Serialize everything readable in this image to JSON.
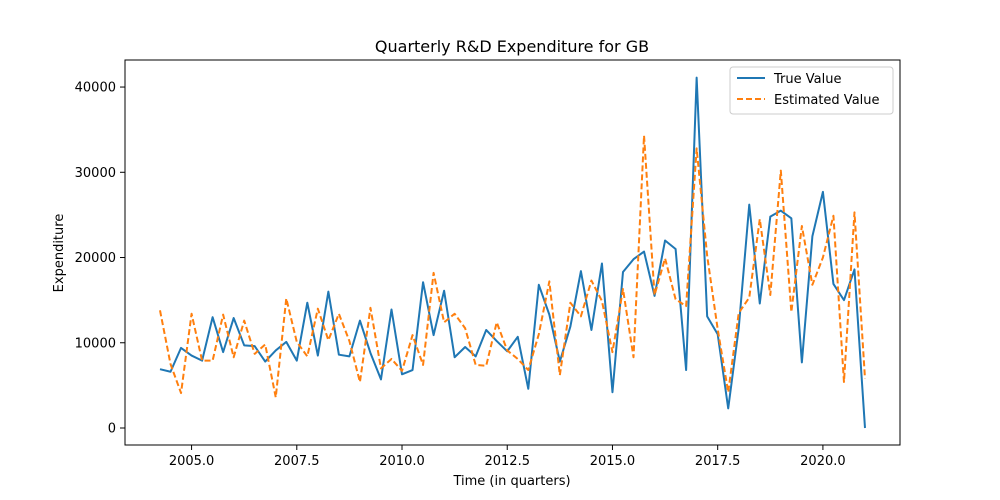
{
  "chart_data": {
    "type": "line",
    "title": "Quarterly R&D Expenditure for GB",
    "xlabel": "Time (in quarters)",
    "ylabel": "Expenditure",
    "xlim": [
      2004.25,
      2021.0
    ],
    "ylim": [
      0,
      42000
    ],
    "x_tick_values": [
      2005.0,
      2007.5,
      2010.0,
      2012.5,
      2015.0,
      2017.5,
      2020.0
    ],
    "x_tick_labels": [
      "2005.0",
      "2007.5",
      "2010.0",
      "2012.5",
      "2015.0",
      "2017.5",
      "2020.0"
    ],
    "y_tick_values": [
      0,
      10000,
      20000,
      30000,
      40000
    ],
    "y_tick_labels": [
      "0",
      "10000",
      "20000",
      "30000",
      "40000"
    ],
    "legend_position": "top-right",
    "grid": false,
    "x_start": 2004.25,
    "x_step": 0.25,
    "series": [
      {
        "name": "True Value",
        "color": "#1f77b4",
        "style": "solid",
        "values": [
          6900,
          6600,
          9400,
          8500,
          7900,
          13000,
          8900,
          12900,
          9700,
          9600,
          7800,
          9100,
          10100,
          7900,
          14700,
          8500,
          16000,
          8600,
          8400,
          12600,
          8800,
          5700,
          13900,
          6300,
          6800,
          17100,
          10900,
          16100,
          8300,
          9500,
          8400,
          11500,
          10200,
          9000,
          10700,
          4600,
          16800,
          13300,
          7800,
          11900,
          18400,
          11500,
          19300,
          4200,
          18300,
          19800,
          20700,
          15500,
          22000,
          21000,
          6800,
          41100,
          13100,
          11000,
          2300,
          11700,
          26200,
          14600,
          24800,
          25500,
          24600,
          7700,
          22500,
          27700,
          16900,
          15000,
          18600,
          0
        ]
      },
      {
        "name": "Estimated Value",
        "color": "#ff7f0e",
        "style": "dashed",
        "values": [
          13800,
          7500,
          4100,
          13400,
          7900,
          7900,
          13300,
          8300,
          12600,
          8700,
          9800,
          3600,
          15200,
          10100,
          8400,
          14000,
          10300,
          13400,
          10200,
          5400,
          14100,
          7000,
          8100,
          6700,
          10900,
          7400,
          18200,
          12400,
          13400,
          11700,
          7400,
          7300,
          12400,
          9100,
          8100,
          6800,
          11000,
          17200,
          6200,
          14700,
          13100,
          17300,
          14900,
          8900,
          16300,
          8300,
          34300,
          15600,
          19900,
          15100,
          14300,
          32800,
          20200,
          11600,
          4200,
          13500,
          15300,
          24500,
          15600,
          30200,
          13600,
          23700,
          16800,
          20000,
          24900,
          5400,
          25300,
          5800
        ]
      }
    ]
  }
}
